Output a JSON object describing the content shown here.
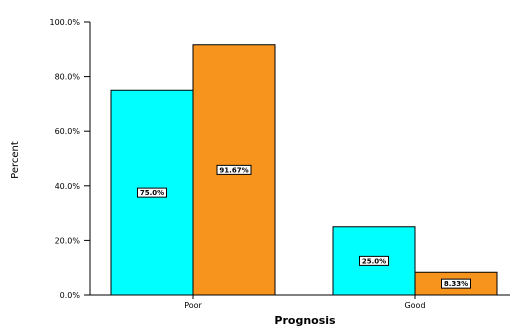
{
  "chart_data": {
    "type": "bar",
    "xlabel": "Prognosis",
    "ylabel": "Percent",
    "ylim": [
      0,
      100
    ],
    "yticks": [
      "0.0%",
      "20.0%",
      "40.0%",
      "60.0%",
      "80.0%",
      "100.0%"
    ],
    "ytick_values": [
      0,
      20,
      40,
      60,
      80,
      100
    ],
    "categories": [
      "Poor",
      "Good"
    ],
    "series": [
      {
        "color": "#00ffff",
        "values": [
          75.0,
          25.0
        ],
        "labels": [
          "75.0%",
          "25.0%"
        ]
      },
      {
        "color": "#f7941d",
        "values": [
          91.67,
          8.33
        ],
        "labels": [
          "91.67%",
          "8.33%"
        ]
      }
    ],
    "grid": false,
    "legend": "none"
  }
}
